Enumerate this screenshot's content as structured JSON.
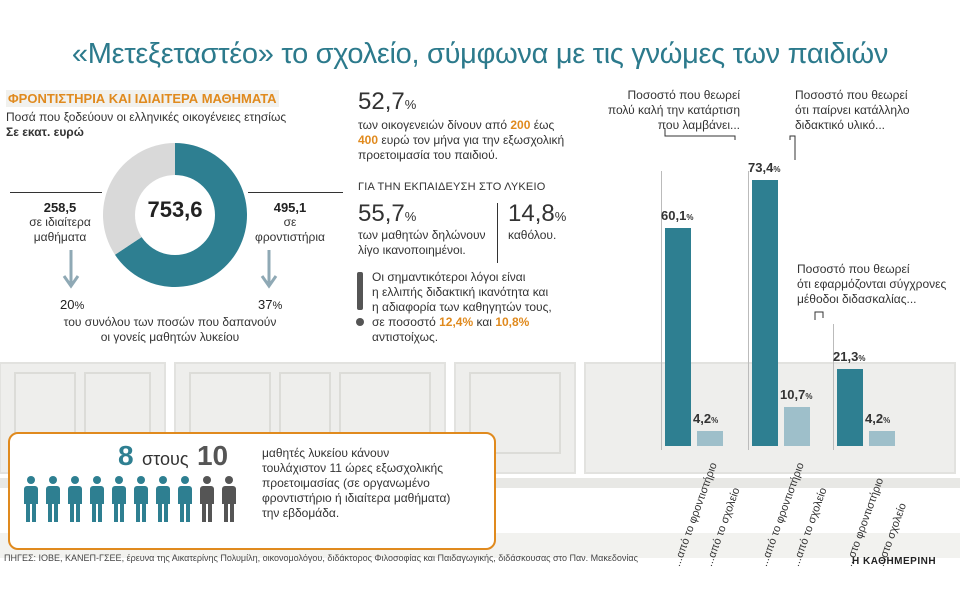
{
  "title": "«Μετεξεταστέο» το σχολείο, σύμφωνα με τις γνώμες των παιδιών",
  "tutoring": {
    "section_title": "ΦΡΟΝΤΙΣΤΗΡΙΑ ΚΑΙ ΙΔΙΑΙΤΕΡΑ ΜΑΘΗΜΑΤΑ",
    "subtitle": "Ποσά που ξοδεύουν οι ελληνικές οικογένειες ετησίως",
    "unit": "Σε εκατ. ευρώ",
    "total": "753,6",
    "left_value": "258,5",
    "left_label_1": "σε ιδιαίτερα",
    "left_label_2": "μαθήματα",
    "right_value": "495,1",
    "right_label_1": "σε",
    "right_label_2": "φροντιστήρια",
    "left_pct": "20",
    "right_pct": "37",
    "pct_sign": "%",
    "share_note_1": "του συνόλου των ποσών που δαπανούν",
    "share_note_2": "οι γονείς μαθητών λυκείου"
  },
  "stats": {
    "families_pct": "52,7",
    "pct_sign": "%",
    "families_line1": "των οικογενειών δίνουν από",
    "families_amt1": "200",
    "families_line1b": "έως",
    "families_amt2": "400",
    "families_line2": "ευρώ τον μήνα για την εξωσχολική",
    "families_line3": "προετοιμασία του παιδιού.",
    "lyceum_heading": "ΓΙΑ ΤΗΝ ΕΚΠΑΙΔΕΥΣΗ ΣΤΟ ΛΥΚΕΙΟ",
    "little_pct": "55,7",
    "little_line1": "των μαθητών δηλώνουν",
    "little_line2": "λίγο ικανοποιημένοι.",
    "none_pct": "14,8",
    "none_line1": "καθόλου.",
    "reasons_line1": "Οι σημαντικότεροι λόγοι είναι",
    "reasons_line2": "η ελλιπής διδακτική ικανότητα και",
    "reasons_line3": "η αδιαφορία των καθηγητών τους,",
    "reasons_line4a": "σε ποσοστό",
    "reasons_v1": "12,4%",
    "reasons_and": "και",
    "reasons_v2": "10,8%",
    "reasons_line5": "αντιστοίχως."
  },
  "students": {
    "big_8": "8",
    "word_of": "στους",
    "big_10": "10",
    "line1": "μαθητές λυκείου κάνουν",
    "line2": "τουλάχιστον 11 ώρες εξωσχολικής",
    "line3": "προετοιμασίας (σε οργανωμένο",
    "line4": "φροντιστήριο ή ιδιαίτερα μαθήματα)",
    "line5": "την εβδομάδα.",
    "filled": 8,
    "total": 10
  },
  "questions": {
    "q1_1": "Ποσοστό που θεωρεί",
    "q1_2": "πολύ καλή την κατάρτιση",
    "q1_3": "που λαμβάνει...",
    "q2_1": "Ποσοστό που θεωρεί",
    "q2_2": "ότι παίρνει κατάλληλο",
    "q2_3": "διδακτικό υλικό...",
    "q3_1": "Ποσοστό που θεωρεί",
    "q3_2": "ότι εφαρμόζονται σύγχρονες",
    "q3_3": "μέθοδοι διδασκαλίας..."
  },
  "source": "ΠΗΓΕΣ: ΙΟΒΕ, ΚΑΝΕΠ-ΓΣΕΕ, έρευνα της Αικατερίνης Πολυμίλη, οικονομολόγου, διδάκτορος Φιλοσοφίας και Παιδαγωγικής, διδάσκουσας στο Παν. Μακεδονίας",
  "brand": "Η ΚΑΘΗΜΕΡΙΝΗ",
  "colors": {
    "teal": "#2e7f91",
    "light_teal": "#9ebfca",
    "gray": "#d9d9d9",
    "orange": "#e08a1e",
    "dark_person": "#555555"
  },
  "chart_data": [
    {
      "type": "pie",
      "title": "ΦΡΟΝΤΙΣΤΗΡΙΑ ΚΑΙ ΙΔΙΑΙΤΕΡΑ ΜΑΘΗΜΑΤΑ",
      "unit": "Σε εκατ. ευρώ",
      "total": 753.6,
      "slices": [
        {
          "name": "σε φροντιστήρια",
          "value": 495.1
        },
        {
          "name": "σε ιδιαίτερα μαθήματα",
          "value": 258.5
        }
      ]
    },
    {
      "type": "bar",
      "ylim": [
        0,
        80
      ],
      "groups": [
        {
          "question": "Ποσοστό που θεωρεί πολύ καλή την κατάρτιση που λαμβάνει...",
          "categories": [
            "...από το φροντιστήριο",
            "...από το σχολείο"
          ],
          "values": [
            60.1,
            4.2
          ],
          "labels": [
            "60,1",
            "4,2"
          ]
        },
        {
          "question": "Ποσοστό που θεωρεί ότι παίρνει κατάλληλο διδακτικό υλικό...",
          "categories": [
            "...από το φροντιστήριο",
            "...από το σχολείο"
          ],
          "values": [
            73.4,
            10.7
          ],
          "labels": [
            "73,4",
            "10,7"
          ]
        },
        {
          "question": "Ποσοστό που θεωρεί ότι εφαρμόζονται σύγχρονες μέθοδοι διδασκαλίας...",
          "categories": [
            "...στο φροντιστήριο",
            "...στο σχολείο"
          ],
          "values": [
            21.3,
            4.2
          ],
          "labels": [
            "21,3",
            "4,2"
          ]
        }
      ]
    }
  ]
}
